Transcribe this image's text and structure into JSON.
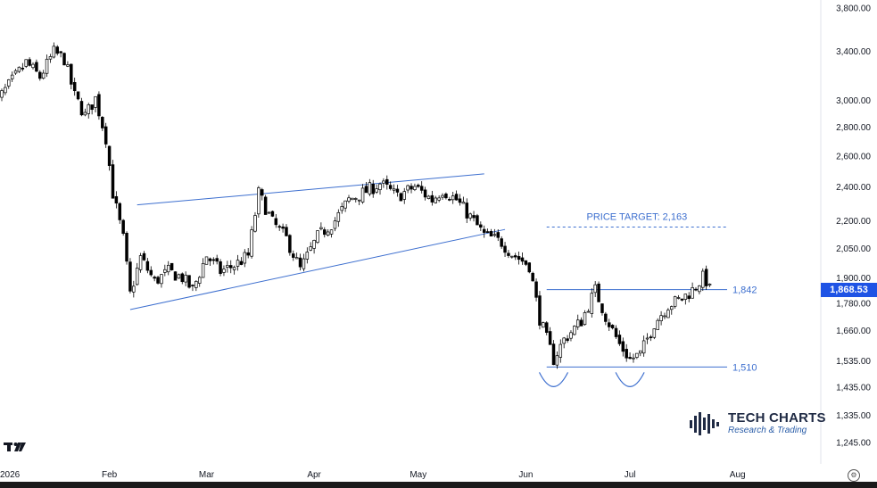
{
  "chart_data": {
    "type": "candlestick",
    "y_axis_scale": "log",
    "ylim": [
      1210,
      3850
    ],
    "y_ticks": [
      "3,800.00",
      "3,400.00",
      "3,000.00",
      "2,800.00",
      "2,600.00",
      "2,400.00",
      "2,200.00",
      "2,050.00",
      "1,900.00",
      "1,780.00",
      "1,660.00",
      "1,535.00",
      "1,435.00",
      "1,335.00",
      "1,245.00"
    ],
    "y_tick_values": [
      3800,
      3400,
      3000,
      2800,
      2600,
      2400,
      2200,
      2050,
      1900,
      1780,
      1660,
      1535,
      1435,
      1335,
      1245
    ],
    "x_ticks": [
      "2026",
      "Feb",
      "Mar",
      "Apr",
      "May",
      "Jun",
      "Jul",
      "Aug"
    ],
    "x_tick_dates": [
      "2026-01-01",
      "2026-02-01",
      "2026-03-01",
      "2026-04-01",
      "2026-05-01",
      "2026-06-01",
      "2026-07-01",
      "2026-08-01"
    ],
    "price_path": [
      [
        "2025-12-29",
        2930
      ],
      [
        "2026-01-04",
        3150
      ],
      [
        "2026-01-08",
        3300
      ],
      [
        "2026-01-12",
        3180
      ],
      [
        "2026-01-16",
        3390
      ],
      [
        "2026-01-19",
        3330
      ],
      [
        "2026-01-22",
        3030
      ],
      [
        "2026-01-25",
        2880
      ],
      [
        "2026-01-28",
        3010
      ],
      [
        "2026-01-31",
        2720
      ],
      [
        "2026-02-02",
        2360
      ],
      [
        "2026-02-05",
        2100
      ],
      [
        "2026-02-07",
        1820
      ],
      [
        "2026-02-10",
        2000
      ],
      [
        "2026-02-14",
        1880
      ],
      [
        "2026-02-18",
        1930
      ],
      [
        "2026-02-22",
        1900
      ],
      [
        "2026-02-25",
        1840
      ],
      [
        "2026-03-01",
        2010
      ],
      [
        "2026-03-05",
        1930
      ],
      [
        "2026-03-09",
        1960
      ],
      [
        "2026-03-13",
        2010
      ],
      [
        "2026-03-16",
        2360
      ],
      [
        "2026-03-20",
        2190
      ],
      [
        "2026-03-24",
        2100
      ],
      [
        "2026-03-28",
        1940
      ],
      [
        "2026-04-02",
        2110
      ],
      [
        "2026-04-07",
        2200
      ],
      [
        "2026-04-11",
        2320
      ],
      [
        "2026-04-15",
        2360
      ],
      [
        "2026-04-20",
        2420
      ],
      [
        "2026-04-25",
        2340
      ],
      [
        "2026-04-30",
        2400
      ],
      [
        "2026-05-05",
        2320
      ],
      [
        "2026-05-08",
        2380
      ],
      [
        "2026-05-12",
        2320
      ],
      [
        "2026-05-16",
        2220
      ],
      [
        "2026-05-20",
        2120
      ],
      [
        "2026-05-25",
        2080
      ],
      [
        "2026-05-28",
        2020
      ],
      [
        "2026-06-02",
        1960
      ],
      [
        "2026-06-05",
        1710
      ],
      [
        "2026-06-09",
        1540
      ],
      [
        "2026-06-12",
        1620
      ],
      [
        "2026-06-17",
        1700
      ],
      [
        "2026-06-21",
        1840
      ],
      [
        "2026-06-24",
        1720
      ],
      [
        "2026-06-28",
        1600
      ],
      [
        "2026-07-01",
        1540
      ],
      [
        "2026-07-04",
        1560
      ],
      [
        "2026-07-08",
        1690
      ],
      [
        "2026-07-12",
        1770
      ],
      [
        "2026-07-16",
        1800
      ],
      [
        "2026-07-19",
        1840
      ],
      [
        "2026-07-22",
        1900
      ],
      [
        "2026-07-24",
        1868.53
      ]
    ],
    "lower_trendline": [
      [
        "2026-02-07",
        1750
      ],
      [
        "2026-05-26",
        2150
      ]
    ],
    "upper_trendline": [
      [
        "2026-02-09",
        2290
      ],
      [
        "2026-05-20",
        2480
      ]
    ],
    "neckline": {
      "value": 1842,
      "label": "1,842",
      "from": "2026-06-07",
      "to": "2026-07-29"
    },
    "support": {
      "value": 1510,
      "label": "1,510",
      "from": "2026-06-07",
      "to": "2026-07-29"
    },
    "target": {
      "value": 2163,
      "label": "PRICE TARGET: 2,163",
      "from": "2026-06-07",
      "to": "2026-07-29"
    },
    "last_price": {
      "value": 1868.53,
      "label": "1,868.53"
    },
    "colors": {
      "candle": "#000000",
      "annotation": "#3d6fcf",
      "price_badge": "#1e53e5"
    }
  },
  "watermark": {
    "title": "TECH CHARTS",
    "subtitle": "Research & Trading"
  },
  "tv_logo": "TradingView logo"
}
